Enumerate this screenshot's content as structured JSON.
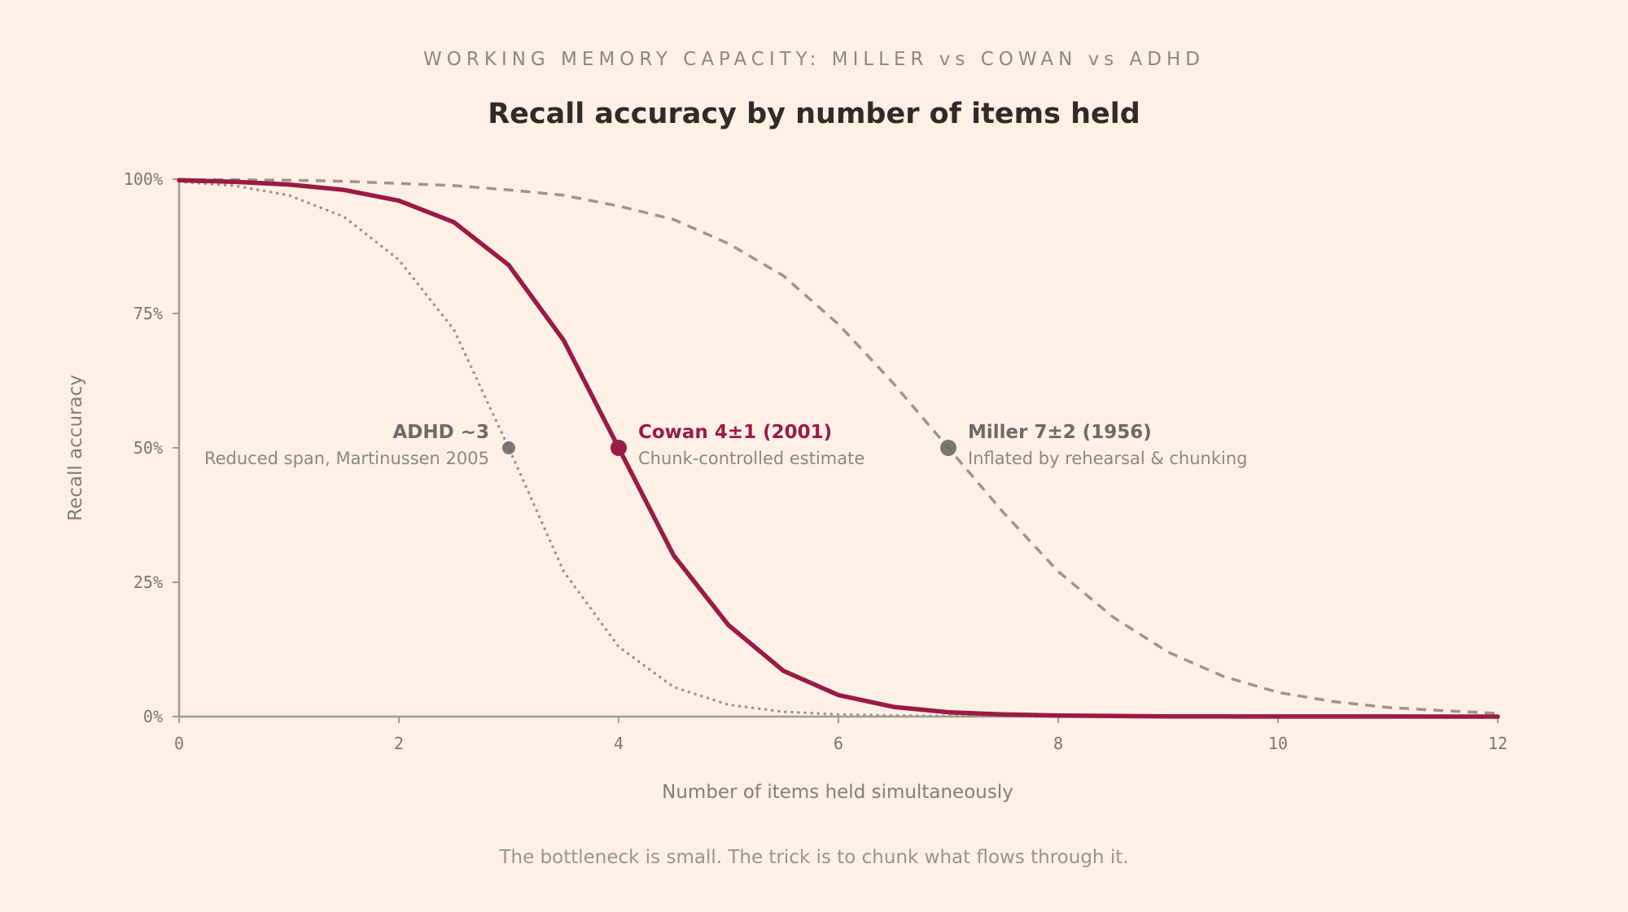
{
  "chart_data": {
    "type": "line",
    "kicker": "WORKING MEMORY CAPACITY: MILLER vs COWAN vs ADHD",
    "title": "Recall accuracy by number of items held",
    "xlabel": "Number of items held simultaneously",
    "ylabel": "Recall accuracy",
    "xlim": [
      0,
      12
    ],
    "ylim": [
      0,
      100
    ],
    "x_ticks": [
      "0",
      "2",
      "4",
      "6",
      "8",
      "10",
      "12"
    ],
    "y_ticks": [
      "0%",
      "25%",
      "50%",
      "75%",
      "100%"
    ],
    "grid": false,
    "caption": "The bottleneck is small. The trick is to chunk what flows through it.",
    "x": [
      0,
      0.5,
      1,
      1.5,
      2,
      2.5,
      3,
      3.5,
      4,
      4.5,
      5,
      5.5,
      6,
      6.5,
      7,
      7.5,
      8,
      8.5,
      9,
      9.5,
      10,
      10.5,
      11,
      11.5,
      12
    ],
    "series": [
      {
        "key": "cowan",
        "color": "#9b1b45",
        "style": "solid",
        "values": [
          99.8,
          99.5,
          99,
          98,
          96,
          92,
          84,
          70,
          50,
          30,
          17,
          8.5,
          4,
          1.8,
          0.8,
          0.4,
          0.2,
          0.1,
          0.05,
          0.03,
          0.02,
          0.01,
          0.01,
          0,
          0
        ]
      },
      {
        "key": "miller",
        "color": "#9d958e",
        "style": "dashed",
        "values": [
          99.9,
          99.9,
          99.8,
          99.6,
          99.2,
          98.8,
          98,
          97,
          95,
          92.5,
          88,
          82,
          73,
          62,
          50,
          38,
          27,
          18.5,
          12,
          7.5,
          4.5,
          2.8,
          1.7,
          1.1,
          0.6
        ]
      },
      {
        "key": "adhd",
        "color": "#9d958e",
        "style": "dotted",
        "values": [
          99.5,
          98.8,
          97,
          93,
          85,
          72,
          50,
          27,
          13,
          5.5,
          2.2,
          0.9,
          0.4,
          0.2,
          0.1,
          0.05,
          0.02,
          0.01,
          0,
          0,
          0,
          0,
          0,
          0,
          0
        ]
      }
    ],
    "annotations": [
      {
        "key": "adhd",
        "x": 3,
        "y": 50,
        "title": "ADHD ~3",
        "subtitle": "Reduced span, Martinussen 2005",
        "color": "#6e6a67",
        "align": "left"
      },
      {
        "key": "cowan",
        "x": 4,
        "y": 50,
        "title": "Cowan 4±1 (2001)",
        "subtitle": "Chunk-controlled estimate",
        "color": "#9b1b45",
        "align": "right"
      },
      {
        "key": "miller",
        "x": 7,
        "y": 50,
        "title": "Miller 7±2 (1956)",
        "subtitle": "Inflated by rehearsal & chunking",
        "color": "#6e6a67",
        "align": "right"
      }
    ]
  }
}
